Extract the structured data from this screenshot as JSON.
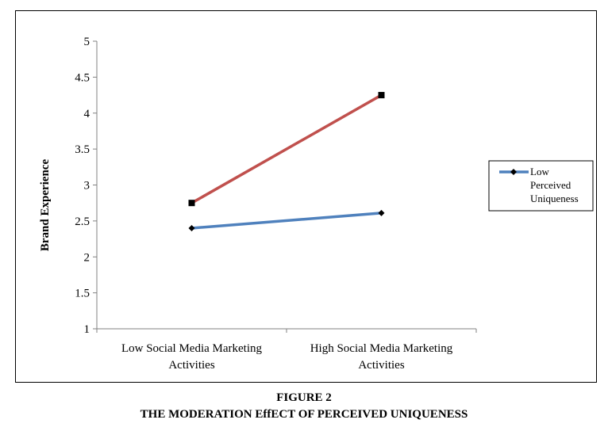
{
  "figure": {
    "number": "FIGURE 2",
    "title": "THE MODERATION EffECT OF PERCEIVED UNIQUENESS"
  },
  "chart_data": {
    "type": "line",
    "ylabel": "Brand Experience",
    "xlabel": "",
    "ylim": [
      1,
      5
    ],
    "yticks": [
      "1",
      "1.5",
      "2",
      "2.5",
      "3",
      "3.5",
      "4",
      "4.5",
      "5"
    ],
    "categories": [
      [
        "Low Social Media Marketing",
        "Activities"
      ],
      [
        "High Social Media Marketing",
        "Activities"
      ]
    ],
    "grid": false,
    "legend_position": "right",
    "series": [
      {
        "name": "Low Perceived Uniqueness",
        "legend_lines": [
          "Low",
          "Perceived",
          "Uniqueness"
        ],
        "values": [
          2.4,
          2.61
        ],
        "color": "#4F81BD",
        "marker": "diamond"
      },
      {
        "values": [
          2.75,
          4.25
        ],
        "color": "#C0504D",
        "marker": "square"
      }
    ]
  }
}
